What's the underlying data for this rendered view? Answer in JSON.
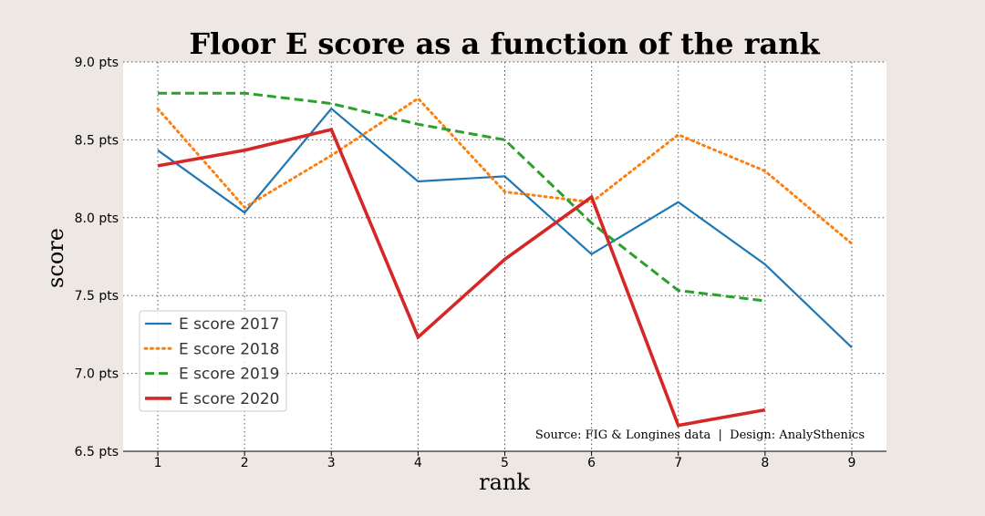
{
  "chart_data": {
    "type": "line",
    "title": "Floor E score as a function of the rank",
    "xlabel": "rank",
    "ylabel": "score",
    "x": [
      1,
      2,
      3,
      4,
      5,
      6,
      7,
      8,
      9
    ],
    "xlim": [
      0.6,
      9.4
    ],
    "ylim": [
      6.5,
      9.0
    ],
    "y_ticks": [
      6.5,
      7.0,
      7.5,
      8.0,
      8.5,
      9.0
    ],
    "y_tick_suffix": " pts",
    "grid": true,
    "legend_position": "center-left",
    "source_note": "Source: FIG & Longines data  |  Design: AnalySthenics",
    "series": [
      {
        "name": "E score 2017",
        "color": "#1f77b4",
        "style": "solid",
        "values": [
          8.433,
          8.033,
          8.7,
          8.233,
          8.266,
          7.766,
          8.1,
          7.7,
          7.166
        ]
      },
      {
        "name": "E score 2018",
        "color": "#ff7f0e",
        "style": "dotted",
        "values": [
          8.7,
          8.066,
          8.4,
          8.766,
          8.166,
          8.1,
          8.533,
          8.3,
          7.833
        ]
      },
      {
        "name": "E score 2019",
        "color": "#2ca02c",
        "style": "dashed",
        "values": [
          8.8,
          8.8,
          8.733,
          8.6,
          8.5,
          7.966,
          7.533,
          7.466,
          null
        ]
      },
      {
        "name": "E score 2020",
        "color": "#d62728",
        "style": "thick",
        "values": [
          8.333,
          8.433,
          8.566,
          7.233,
          7.733,
          8.133,
          6.666,
          6.766,
          null
        ]
      }
    ]
  }
}
